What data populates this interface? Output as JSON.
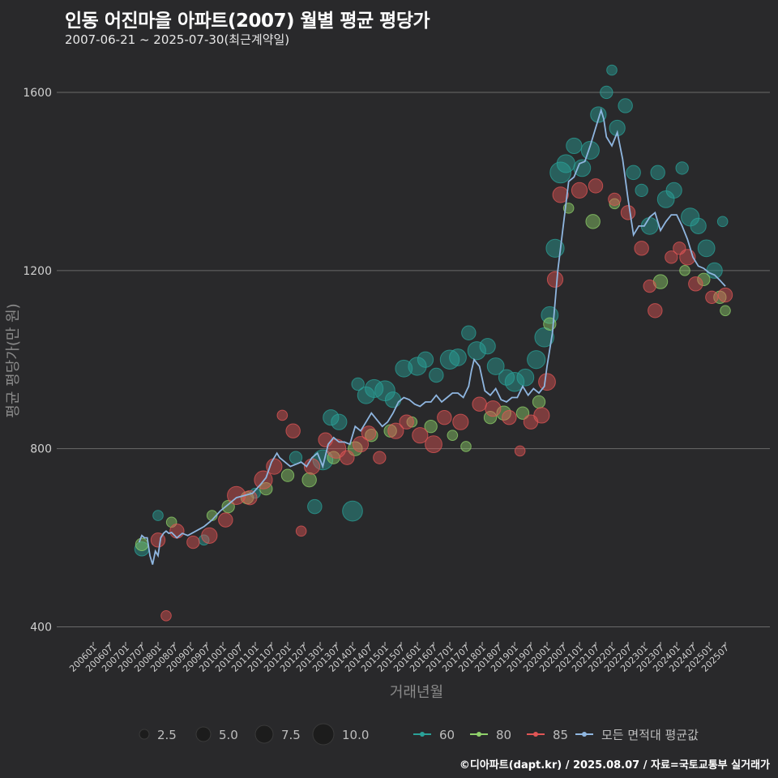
{
  "title": "인동 어진마을 아파트(2007) 월별 평균 평당가",
  "subtitle": "2007-06-21 ~ 2025-07-30(최근계약일)",
  "source": "©디아파트(dapt.kr) / 2025.08.07 / 자료=국토교통부 실거래가",
  "colors": {
    "background": "#29292b",
    "grid": "#6a6a6a",
    "s60": "#2aa198",
    "s80": "#8fd16a",
    "s85": "#e05555",
    "avg": "#8fb6e0"
  },
  "chart_data": {
    "type": "scatter",
    "xlabel": "거래년월",
    "ylabel": "평균 평당가(만 원)",
    "ylim": [
      370,
      1680
    ],
    "yticks": [
      400,
      800,
      1200,
      1600
    ],
    "grid": true,
    "x_tick_labels": [
      "200601",
      "200607",
      "200701",
      "200707",
      "200801",
      "200807",
      "200901",
      "200907",
      "201001",
      "201007",
      "201101",
      "201107",
      "201201",
      "201207",
      "201301",
      "201307",
      "201401",
      "201407",
      "201501",
      "201507",
      "201601",
      "201607",
      "201701",
      "201707",
      "201801",
      "201807",
      "201901",
      "201907",
      "202001",
      "202007",
      "202101",
      "202107",
      "202201",
      "202207",
      "202301",
      "202307",
      "202401",
      "202407",
      "202501",
      "202507"
    ],
    "size_legend": {
      "title": "",
      "values": [
        "2.5",
        "5.0",
        "7.5",
        "10.0"
      ]
    },
    "legend": {
      "placement": "bottom",
      "entries": [
        "60",
        "80",
        "85",
        "모든 면적대 평균값"
      ]
    },
    "avg_series": {
      "name": "모든 면적대 평균값",
      "x": [
        "2007-06",
        "2007-07",
        "2007-08",
        "2007-09",
        "2007-10",
        "2007-11",
        "2007-12",
        "2008-01",
        "2008-02",
        "2008-03",
        "2008-04",
        "2008-05",
        "2008-06",
        "2008-08",
        "2008-10",
        "2008-12",
        "2009-03",
        "2009-06",
        "2009-09",
        "2009-12",
        "2010-03",
        "2010-06",
        "2010-09",
        "2010-12",
        "2011-03",
        "2011-05",
        "2011-07",
        "2011-09",
        "2011-10",
        "2011-12",
        "2012-02",
        "2012-04",
        "2012-06",
        "2012-08",
        "2012-10",
        "2012-12",
        "2013-02",
        "2013-04",
        "2013-06",
        "2013-08",
        "2013-10",
        "2013-12",
        "2014-02",
        "2014-04",
        "2014-06",
        "2014-08",
        "2014-10",
        "2014-12",
        "2015-02",
        "2015-04",
        "2015-06",
        "2015-08",
        "2015-10",
        "2015-12",
        "2016-02",
        "2016-04",
        "2016-06",
        "2016-08",
        "2016-10",
        "2016-12",
        "2017-02",
        "2017-04",
        "2017-06",
        "2017-08",
        "2017-09",
        "2017-10",
        "2017-12",
        "2018-02",
        "2018-04",
        "2018-06",
        "2018-08",
        "2018-10",
        "2018-12",
        "2019-02",
        "2019-04",
        "2019-06",
        "2019-08",
        "2019-10",
        "2019-12",
        "2020-01",
        "2020-03",
        "2020-05",
        "2020-07",
        "2020-09",
        "2020-11",
        "2021-01",
        "2021-03",
        "2021-05",
        "2021-07",
        "2021-09",
        "2021-10",
        "2021-11",
        "2022-01",
        "2022-03",
        "2022-05",
        "2022-07",
        "2022-09",
        "2022-11",
        "2023-01",
        "2023-03",
        "2023-05",
        "2023-07",
        "2023-09",
        "2023-11",
        "2024-01",
        "2024-03",
        "2024-05",
        "2024-07",
        "2024-09",
        "2024-11",
        "2025-01",
        "2025-03",
        "2025-05",
        "2025-07"
      ],
      "y": [
        590,
        605,
        600,
        600,
        560,
        540,
        570,
        560,
        600,
        610,
        615,
        610,
        612,
        600,
        610,
        605,
        615,
        625,
        640,
        660,
        675,
        690,
        695,
        700,
        720,
        735,
        770,
        790,
        780,
        770,
        760,
        765,
        770,
        760,
        780,
        790,
        760,
        810,
        825,
        815,
        815,
        810,
        850,
        840,
        860,
        880,
        865,
        850,
        860,
        880,
        905,
        915,
        910,
        900,
        895,
        905,
        905,
        920,
        905,
        915,
        925,
        925,
        915,
        940,
        975,
        1000,
        985,
        930,
        920,
        935,
        910,
        905,
        915,
        915,
        940,
        920,
        935,
        925,
        940,
        985,
        1060,
        1200,
        1300,
        1400,
        1410,
        1440,
        1445,
        1480,
        1520,
        1560,
        1540,
        1500,
        1480,
        1510,
        1450,
        1360,
        1280,
        1300,
        1300,
        1320,
        1330,
        1290,
        1310,
        1325,
        1325,
        1300,
        1270,
        1230,
        1210,
        1205,
        1195,
        1190,
        1178,
        1165
      ]
    },
    "series": [
      {
        "name": "60",
        "points": [
          {
            "x": "2007-07",
            "y": 575,
            "n": 3
          },
          {
            "x": "2008-01",
            "y": 650,
            "n": 1
          },
          {
            "x": "2009-06",
            "y": 595,
            "n": 1
          },
          {
            "x": "2011-01",
            "y": 700,
            "n": 1
          },
          {
            "x": "2012-04",
            "y": 780,
            "n": 2
          },
          {
            "x": "2012-11",
            "y": 670,
            "n": 3
          },
          {
            "x": "2013-02",
            "y": 775,
            "n": 8
          },
          {
            "x": "2013-05",
            "y": 870,
            "n": 4
          },
          {
            "x": "2013-08",
            "y": 860,
            "n": 4
          },
          {
            "x": "2014-01",
            "y": 660,
            "n": 8
          },
          {
            "x": "2014-03",
            "y": 945,
            "n": 2
          },
          {
            "x": "2014-06",
            "y": 920,
            "n": 5
          },
          {
            "x": "2014-09",
            "y": 935,
            "n": 6
          },
          {
            "x": "2015-01",
            "y": 930,
            "n": 8
          },
          {
            "x": "2015-04",
            "y": 910,
            "n": 4
          },
          {
            "x": "2015-08",
            "y": 980,
            "n": 5
          },
          {
            "x": "2016-01",
            "y": 985,
            "n": 6
          },
          {
            "x": "2016-04",
            "y": 1000,
            "n": 4
          },
          {
            "x": "2016-08",
            "y": 965,
            "n": 3
          },
          {
            "x": "2017-01",
            "y": 1000,
            "n": 7
          },
          {
            "x": "2017-04",
            "y": 1005,
            "n": 5
          },
          {
            "x": "2017-08",
            "y": 1060,
            "n": 3
          },
          {
            "x": "2017-11",
            "y": 1020,
            "n": 6
          },
          {
            "x": "2018-03",
            "y": 1030,
            "n": 4
          },
          {
            "x": "2018-06",
            "y": 985,
            "n": 5
          },
          {
            "x": "2018-10",
            "y": 960,
            "n": 4
          },
          {
            "x": "2019-01",
            "y": 950,
            "n": 7
          },
          {
            "x": "2019-05",
            "y": 960,
            "n": 5
          },
          {
            "x": "2019-09",
            "y": 1000,
            "n": 6
          },
          {
            "x": "2019-12",
            "y": 1050,
            "n": 7
          },
          {
            "x": "2020-02",
            "y": 1100,
            "n": 5
          },
          {
            "x": "2020-04",
            "y": 1250,
            "n": 6
          },
          {
            "x": "2020-06",
            "y": 1420,
            "n": 9
          },
          {
            "x": "2020-08",
            "y": 1440,
            "n": 6
          },
          {
            "x": "2020-11",
            "y": 1480,
            "n": 4
          },
          {
            "x": "2021-02",
            "y": 1430,
            "n": 5
          },
          {
            "x": "2021-05",
            "y": 1470,
            "n": 6
          },
          {
            "x": "2021-08",
            "y": 1550,
            "n": 4
          },
          {
            "x": "2021-11",
            "y": 1600,
            "n": 2
          },
          {
            "x": "2022-01",
            "y": 1650,
            "n": 1
          },
          {
            "x": "2022-03",
            "y": 1520,
            "n": 4
          },
          {
            "x": "2022-06",
            "y": 1570,
            "n": 3
          },
          {
            "x": "2022-09",
            "y": 1420,
            "n": 3
          },
          {
            "x": "2022-12",
            "y": 1380,
            "n": 2
          },
          {
            "x": "2023-03",
            "y": 1300,
            "n": 5
          },
          {
            "x": "2023-06",
            "y": 1420,
            "n": 3
          },
          {
            "x": "2023-09",
            "y": 1360,
            "n": 5
          },
          {
            "x": "2023-12",
            "y": 1380,
            "n": 4
          },
          {
            "x": "2024-03",
            "y": 1430,
            "n": 2
          },
          {
            "x": "2024-06",
            "y": 1320,
            "n": 6
          },
          {
            "x": "2024-09",
            "y": 1300,
            "n": 4
          },
          {
            "x": "2024-12",
            "y": 1250,
            "n": 5
          },
          {
            "x": "2025-03",
            "y": 1200,
            "n": 4
          },
          {
            "x": "2025-06",
            "y": 1310,
            "n": 1
          }
        ]
      },
      {
        "name": "80",
        "points": [
          {
            "x": "2007-07",
            "y": 585,
            "n": 2
          },
          {
            "x": "2008-06",
            "y": 635,
            "n": 1
          },
          {
            "x": "2009-09",
            "y": 650,
            "n": 1
          },
          {
            "x": "2010-03",
            "y": 670,
            "n": 2
          },
          {
            "x": "2010-10",
            "y": 690,
            "n": 2
          },
          {
            "x": "2011-05",
            "y": 710,
            "n": 2
          },
          {
            "x": "2012-01",
            "y": 740,
            "n": 2
          },
          {
            "x": "2012-09",
            "y": 730,
            "n": 3
          },
          {
            "x": "2013-06",
            "y": 780,
            "n": 2
          },
          {
            "x": "2014-02",
            "y": 800,
            "n": 3
          },
          {
            "x": "2014-08",
            "y": 830,
            "n": 2
          },
          {
            "x": "2015-03",
            "y": 840,
            "n": 2
          },
          {
            "x": "2015-11",
            "y": 860,
            "n": 1
          },
          {
            "x": "2016-06",
            "y": 850,
            "n": 2
          },
          {
            "x": "2017-02",
            "y": 830,
            "n": 1
          },
          {
            "x": "2017-07",
            "y": 805,
            "n": 1
          },
          {
            "x": "2018-04",
            "y": 870,
            "n": 2
          },
          {
            "x": "2018-09",
            "y": 880,
            "n": 3
          },
          {
            "x": "2019-04",
            "y": 880,
            "n": 2
          },
          {
            "x": "2019-10",
            "y": 905,
            "n": 2
          },
          {
            "x": "2020-02",
            "y": 1080,
            "n": 2
          },
          {
            "x": "2020-09",
            "y": 1340,
            "n": 1
          },
          {
            "x": "2021-06",
            "y": 1310,
            "n": 3
          },
          {
            "x": "2022-02",
            "y": 1350,
            "n": 1
          },
          {
            "x": "2023-07",
            "y": 1175,
            "n": 3
          },
          {
            "x": "2024-04",
            "y": 1200,
            "n": 1
          },
          {
            "x": "2024-11",
            "y": 1180,
            "n": 2
          },
          {
            "x": "2025-05",
            "y": 1140,
            "n": 2
          },
          {
            "x": "2025-07",
            "y": 1110,
            "n": 1
          }
        ]
      },
      {
        "name": "85",
        "points": [
          {
            "x": "2008-01",
            "y": 595,
            "n": 3
          },
          {
            "x": "2008-04",
            "y": 425,
            "n": 1
          },
          {
            "x": "2008-08",
            "y": 615,
            "n": 3
          },
          {
            "x": "2009-02",
            "y": 590,
            "n": 2
          },
          {
            "x": "2009-08",
            "y": 605,
            "n": 4
          },
          {
            "x": "2010-02",
            "y": 640,
            "n": 3
          },
          {
            "x": "2010-06",
            "y": 695,
            "n": 6
          },
          {
            "x": "2010-11",
            "y": 690,
            "n": 3
          },
          {
            "x": "2011-04",
            "y": 730,
            "n": 6
          },
          {
            "x": "2011-08",
            "y": 760,
            "n": 4
          },
          {
            "x": "2011-11",
            "y": 875,
            "n": 1
          },
          {
            "x": "2012-03",
            "y": 840,
            "n": 3
          },
          {
            "x": "2012-06",
            "y": 615,
            "n": 1
          },
          {
            "x": "2012-10",
            "y": 760,
            "n": 4
          },
          {
            "x": "2013-03",
            "y": 820,
            "n": 3
          },
          {
            "x": "2013-07",
            "y": 800,
            "n": 7
          },
          {
            "x": "2013-11",
            "y": 780,
            "n": 3
          },
          {
            "x": "2014-04",
            "y": 810,
            "n": 4
          },
          {
            "x": "2014-07",
            "y": 835,
            "n": 3
          },
          {
            "x": "2014-11",
            "y": 780,
            "n": 2
          },
          {
            "x": "2015-05",
            "y": 840,
            "n": 4
          },
          {
            "x": "2015-09",
            "y": 860,
            "n": 3
          },
          {
            "x": "2016-02",
            "y": 830,
            "n": 4
          },
          {
            "x": "2016-07",
            "y": 810,
            "n": 5
          },
          {
            "x": "2016-11",
            "y": 870,
            "n": 3
          },
          {
            "x": "2017-05",
            "y": 860,
            "n": 4
          },
          {
            "x": "2017-12",
            "y": 900,
            "n": 3
          },
          {
            "x": "2018-05",
            "y": 890,
            "n": 4
          },
          {
            "x": "2018-11",
            "y": 870,
            "n": 3
          },
          {
            "x": "2019-03",
            "y": 795,
            "n": 1
          },
          {
            "x": "2019-07",
            "y": 860,
            "n": 3
          },
          {
            "x": "2019-11",
            "y": 875,
            "n": 4
          },
          {
            "x": "2020-01",
            "y": 950,
            "n": 5
          },
          {
            "x": "2020-04",
            "y": 1180,
            "n": 4
          },
          {
            "x": "2020-06",
            "y": 1370,
            "n": 4
          },
          {
            "x": "2021-01",
            "y": 1380,
            "n": 4
          },
          {
            "x": "2021-07",
            "y": 1390,
            "n": 3
          },
          {
            "x": "2022-02",
            "y": 1360,
            "n": 2
          },
          {
            "x": "2022-07",
            "y": 1330,
            "n": 3
          },
          {
            "x": "2022-12",
            "y": 1250,
            "n": 3
          },
          {
            "x": "2023-03",
            "y": 1165,
            "n": 2
          },
          {
            "x": "2023-05",
            "y": 1110,
            "n": 3
          },
          {
            "x": "2023-11",
            "y": 1230,
            "n": 2
          },
          {
            "x": "2024-02",
            "y": 1250,
            "n": 2
          },
          {
            "x": "2024-05",
            "y": 1230,
            "n": 4
          },
          {
            "x": "2024-08",
            "y": 1170,
            "n": 3
          },
          {
            "x": "2025-02",
            "y": 1140,
            "n": 2
          },
          {
            "x": "2025-07",
            "y": 1145,
            "n": 3
          }
        ]
      }
    ]
  }
}
